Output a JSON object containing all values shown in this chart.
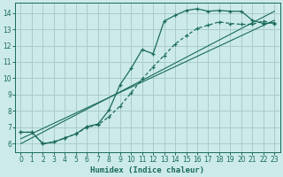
{
  "xlabel": "Humidex (Indice chaleur)",
  "bg_color": "#cceaea",
  "grid_color": "#aacccc",
  "line_color": "#1a6b5a",
  "xlim": [
    -0.5,
    23.5
  ],
  "ylim": [
    5.5,
    14.6
  ],
  "xticks": [
    0,
    1,
    2,
    3,
    4,
    5,
    6,
    7,
    8,
    9,
    10,
    11,
    12,
    13,
    14,
    15,
    16,
    17,
    18,
    19,
    20,
    21,
    22,
    23
  ],
  "yticks": [
    6,
    7,
    8,
    9,
    10,
    11,
    12,
    13,
    14
  ],
  "curve_main_x": [
    0,
    1,
    2,
    3,
    4,
    5,
    6,
    7,
    8,
    9,
    10,
    11,
    12,
    13,
    14,
    15,
    16,
    17,
    18,
    19,
    20,
    21,
    22,
    23
  ],
  "curve_main_y": [
    6.7,
    6.7,
    6.0,
    6.1,
    6.35,
    6.6,
    7.05,
    7.2,
    8.05,
    9.6,
    10.6,
    11.75,
    11.5,
    13.5,
    13.85,
    14.15,
    14.25,
    14.1,
    14.15,
    14.1,
    14.1,
    13.55,
    13.35,
    13.4
  ],
  "curve_dashed_x": [
    0,
    1,
    2,
    3,
    4,
    5,
    6,
    7,
    8,
    9,
    10,
    11,
    12,
    13,
    14,
    15,
    16,
    17,
    18,
    19,
    20,
    21,
    22,
    23
  ],
  "curve_dashed_y": [
    6.7,
    6.7,
    6.0,
    6.1,
    6.35,
    6.6,
    7.0,
    7.15,
    7.65,
    8.3,
    9.1,
    9.95,
    10.7,
    11.4,
    12.1,
    12.6,
    13.05,
    13.25,
    13.45,
    13.35,
    13.3,
    13.3,
    13.5,
    13.35
  ],
  "ref_line1_x": [
    0,
    23
  ],
  "ref_line1_y": [
    6.0,
    14.1
  ],
  "ref_line2_x": [
    0,
    23
  ],
  "ref_line2_y": [
    6.3,
    13.55
  ]
}
